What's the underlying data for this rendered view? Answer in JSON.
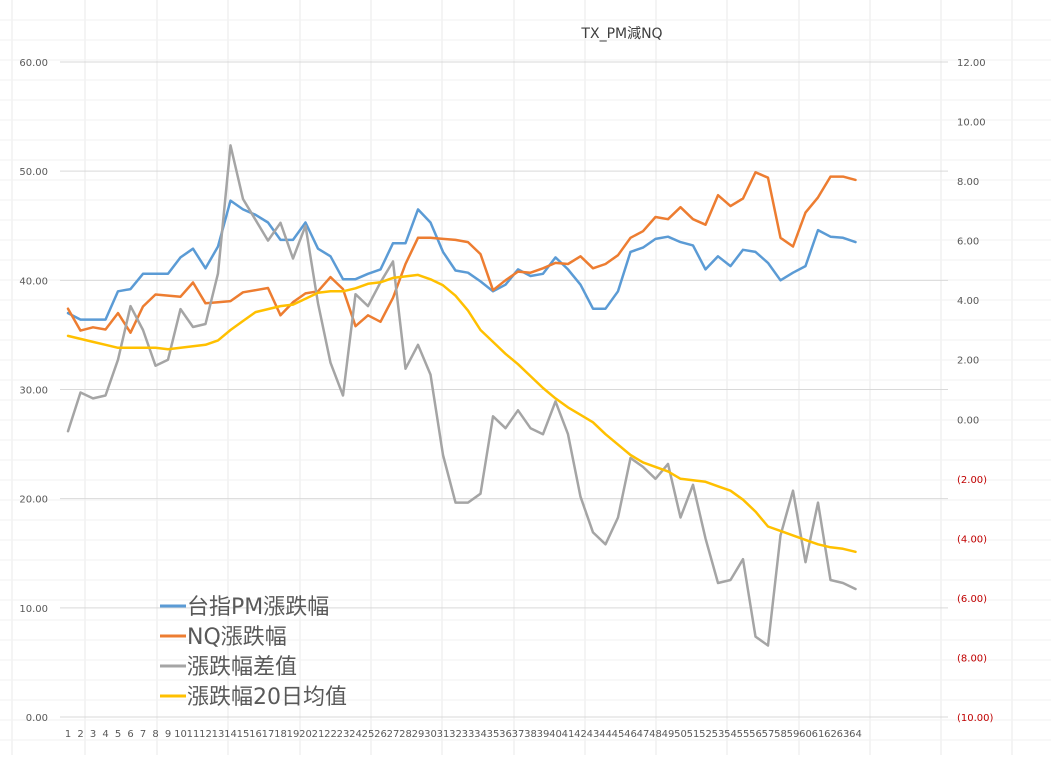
{
  "chart_data": {
    "type": "line",
    "title": "TX_PM減NQ",
    "xlabel": "",
    "ylabel": "",
    "categories": [
      "1",
      "2",
      "3",
      "4",
      "5",
      "6",
      "7",
      "8",
      "9",
      "10",
      "11",
      "12",
      "13",
      "14",
      "15",
      "16",
      "17",
      "18",
      "19",
      "20",
      "21",
      "22",
      "23",
      "24",
      "25",
      "26",
      "27",
      "28",
      "29",
      "30",
      "31",
      "32",
      "33",
      "34",
      "35",
      "36",
      "37",
      "38",
      "39",
      "40",
      "41",
      "42",
      "43",
      "44",
      "45",
      "46",
      "47",
      "48",
      "49",
      "50",
      "51",
      "52",
      "53",
      "54",
      "55",
      "56",
      "57",
      "58",
      "59",
      "60",
      "61",
      "62",
      "63",
      "64"
    ],
    "y_left": {
      "range": [
        0,
        60
      ],
      "ticks": [
        "0.00",
        "10.00",
        "20.00",
        "30.00",
        "40.00",
        "50.00",
        "60.00"
      ]
    },
    "y_right": {
      "range": [
        -10,
        12
      ],
      "ticks": [
        "(10.00)",
        "(8.00)",
        "(6.00)",
        "(4.00)",
        "(2.00)",
        "0.00",
        "2.00",
        "4.00",
        "6.00",
        "8.00",
        "10.00",
        "12.00"
      ]
    },
    "gridlines": "horizontal",
    "legend_position": "bottom-left",
    "series": [
      {
        "name": "台指PM漲跌幅",
        "axis": "left",
        "color": "#5b9bd5",
        "values": [
          37.0,
          36.4,
          36.4,
          36.4,
          39.0,
          39.2,
          40.6,
          40.6,
          40.6,
          42.1,
          42.9,
          41.1,
          43.1,
          47.3,
          46.5,
          46.0,
          45.3,
          43.7,
          43.7,
          45.3,
          42.9,
          42.2,
          40.1,
          40.1,
          40.6,
          41.0,
          43.4,
          43.4,
          46.5,
          45.3,
          42.6,
          40.9,
          40.7,
          39.9,
          39.0,
          39.6,
          41.0,
          40.4,
          40.6,
          42.1,
          41.0,
          39.6,
          37.4,
          37.4,
          39.0,
          42.6,
          43.0,
          43.8,
          44.0,
          43.5,
          43.2,
          41.0,
          42.2,
          41.3,
          42.8,
          42.6,
          41.6,
          40.0,
          40.7,
          41.3,
          44.6,
          44.0,
          43.9,
          43.5
        ]
      },
      {
        "name": "NQ漲跌幅",
        "axis": "left",
        "color": "#ed7d31",
        "values": [
          37.4,
          35.4,
          35.7,
          35.5,
          37.0,
          35.2,
          37.6,
          38.7,
          38.6,
          38.5,
          39.8,
          37.9,
          38.0,
          38.1,
          38.9,
          39.1,
          39.3,
          36.8,
          38.0,
          38.8,
          39.0,
          40.3,
          39.2,
          35.8,
          36.8,
          36.2,
          38.4,
          41.5,
          43.9,
          43.9,
          43.8,
          43.7,
          43.5,
          42.4,
          39.1,
          40.0,
          40.8,
          40.7,
          41.1,
          41.6,
          41.5,
          42.2,
          41.1,
          41.5,
          42.3,
          43.9,
          44.5,
          45.8,
          45.6,
          46.7,
          45.6,
          45.1,
          47.8,
          46.8,
          47.5,
          49.9,
          49.4,
          43.9,
          43.1,
          46.2,
          47.6,
          49.5,
          49.5,
          49.2
        ]
      },
      {
        "name": "漲跌幅差值",
        "axis": "right",
        "color": "#a5a5a5",
        "values": [
          -0.4,
          0.9,
          0.7,
          0.8,
          2.0,
          3.8,
          3.0,
          1.8,
          2.0,
          3.7,
          3.1,
          3.2,
          4.9,
          9.2,
          7.4,
          6.7,
          6.0,
          6.6,
          5.4,
          6.5,
          3.9,
          1.9,
          0.8,
          4.2,
          3.8,
          4.6,
          5.3,
          1.7,
          2.5,
          1.5,
          -1.2,
          -2.8,
          -2.8,
          -2.5,
          0.1,
          -0.3,
          0.3,
          -0.3,
          -0.5,
          0.6,
          -0.5,
          -2.6,
          -3.8,
          -4.2,
          -3.3,
          -1.3,
          -1.6,
          -2.0,
          -1.5,
          -3.3,
          -2.2,
          -4.0,
          -5.5,
          -5.4,
          -4.7,
          -7.3,
          -7.6,
          -3.9,
          -2.4,
          -4.8,
          -2.8,
          -5.4,
          -5.5,
          -5.7
        ]
      },
      {
        "name": "漲跌幅20日均值",
        "axis": "right",
        "color": "#ffc000",
        "values": [
          2.8,
          2.7,
          2.6,
          2.5,
          2.4,
          2.4,
          2.4,
          2.4,
          2.35,
          2.4,
          2.45,
          2.5,
          2.65,
          3.0,
          3.3,
          3.6,
          3.7,
          3.8,
          3.85,
          4.05,
          4.25,
          4.3,
          4.3,
          4.4,
          4.55,
          4.6,
          4.75,
          4.8,
          4.85,
          4.7,
          4.5,
          4.15,
          3.65,
          3.0,
          2.6,
          2.2,
          1.85,
          1.45,
          1.05,
          0.7,
          0.4,
          0.15,
          -0.1,
          -0.5,
          -0.85,
          -1.2,
          -1.45,
          -1.6,
          -1.75,
          -2.0,
          -2.05,
          -2.1,
          -2.25,
          -2.4,
          -2.7,
          -3.1,
          -3.6,
          -3.75,
          -3.9,
          -4.05,
          -4.2,
          -4.3,
          -4.35,
          -4.45
        ]
      }
    ]
  }
}
